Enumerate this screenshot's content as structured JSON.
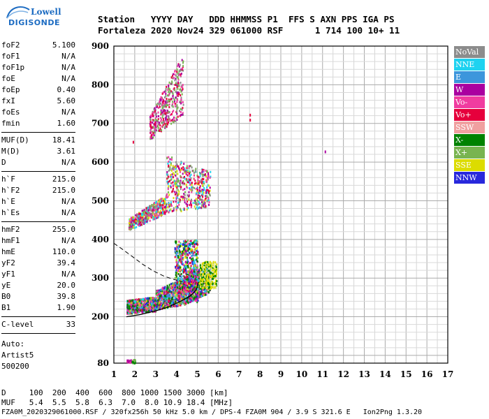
{
  "logo": {
    "line1": "Lowell",
    "line2": "DIGISONDE"
  },
  "header": {
    "labels": "Station   YYYY DAY   DDD HHMMSS P1  FFS S AXN PPS IGA PS",
    "values": "Fortaleza 2020 Nov24 329 061000 RSF      1 714 100 10+ 11"
  },
  "params": {
    "group1": [
      {
        "k": "foF2",
        "v": "5.100"
      },
      {
        "k": "foF1",
        "v": "N/A"
      },
      {
        "k": "foF1p",
        "v": "N/A"
      },
      {
        "k": "foE",
        "v": "N/A"
      },
      {
        "k": "foEp",
        "v": "0.40"
      },
      {
        "k": "fxI",
        "v": "5.60"
      },
      {
        "k": "foEs",
        "v": "N/A"
      },
      {
        "k": "fmin",
        "v": "1.60"
      }
    ],
    "group2": [
      {
        "k": "MUF(D)",
        "v": "18.41"
      },
      {
        "k": "M(D)",
        "v": "3.61"
      },
      {
        "k": "D",
        "v": "N/A"
      }
    ],
    "group3": [
      {
        "k": "h`F",
        "v": "215.0"
      },
      {
        "k": "h`F2",
        "v": "215.0"
      },
      {
        "k": "h`E",
        "v": "N/A"
      },
      {
        "k": "h`Es",
        "v": "N/A"
      }
    ],
    "group4": [
      {
        "k": "hmF2",
        "v": "255.0"
      },
      {
        "k": "hmF1",
        "v": "N/A"
      },
      {
        "k": "hmE",
        "v": "110.0"
      },
      {
        "k": "yF2",
        "v": "39.4"
      },
      {
        "k": "yF1",
        "v": "N/A"
      },
      {
        "k": "yE",
        "v": "20.0"
      },
      {
        "k": "B0",
        "v": "39.8"
      },
      {
        "k": "B1",
        "v": "1.90"
      }
    ],
    "clevel": {
      "k": "C-level",
      "v": "33"
    },
    "auto": [
      "Auto:",
      "Artist5",
      "500200"
    ]
  },
  "legend": [
    {
      "label": "NoVal",
      "color": "#8c8c8c"
    },
    {
      "label": "NNE",
      "color": "#1ed2f0"
    },
    {
      "label": "E",
      "color": "#3c96dc"
    },
    {
      "label": "W",
      "color": "#aa00a0"
    },
    {
      "label": "Vo-",
      "color": "#f03ca0"
    },
    {
      "label": "Vo+",
      "color": "#e6003c"
    },
    {
      "label": "SSW",
      "color": "#f0a0a0"
    },
    {
      "label": "X-",
      "color": "#008200"
    },
    {
      "label": "X+",
      "color": "#78b450"
    },
    {
      "label": "SSE",
      "color": "#dcdc00"
    },
    {
      "label": "NNW",
      "color": "#2828dc"
    }
  ],
  "bottom": {
    "dist": "D     100  200  400  600  800 1000 1500 3000 [km]",
    "muf": "MUF   5.4  5.5  5.8  6.3  7.0  8.0 10.9 18.4 [MHz]"
  },
  "footer": "FZA0M_2020329061000.RSF / 320fx256h 50 kHz 5.0 km / DPS-4 FZA0M 904 / 3.9 S 321.6 E   Ion2Png 1.3.20",
  "chart_data": {
    "type": "scatter",
    "xlim": [
      1,
      17
    ],
    "ylim": [
      80,
      900
    ],
    "xticks": [
      1,
      2,
      3,
      4,
      5,
      6,
      7,
      8,
      9,
      10,
      11,
      12,
      13,
      14,
      15,
      16,
      17
    ],
    "yticks": [
      80,
      200,
      300,
      400,
      500,
      600,
      700,
      800,
      900
    ],
    "grid": true,
    "clusters": [
      {
        "name": "F1",
        "x": [
          1.6,
          5.6
        ],
        "h": [
          205,
          330
        ]
      },
      {
        "name": "F2echo",
        "x": [
          1.7,
          5.6
        ],
        "h": [
          420,
          560
        ]
      },
      {
        "name": "F3echo",
        "x": [
          2.7,
          4.3
        ],
        "h": [
          640,
          880
        ]
      }
    ],
    "isolated_points": [
      {
        "x": 7.5,
        "y": 725,
        "color": "#e6003c"
      },
      {
        "x": 7.5,
        "y": 712,
        "color": "#e6003c"
      },
      {
        "x": 11.1,
        "y": 630,
        "color": "#aa00a0"
      },
      {
        "x": 1.9,
        "y": 655,
        "color": "#e6003c"
      },
      {
        "x": 3.9,
        "y": 380,
        "color": "#2828dc"
      }
    ],
    "profile_solid": {
      "x": [
        1.6,
        2.2,
        3.0,
        3.6,
        4.2,
        4.7,
        4.95,
        5.05
      ],
      "y": [
        200,
        205,
        215,
        225,
        240,
        255,
        270,
        290
      ]
    },
    "profile_dashed": {
      "x": [
        1.0,
        1.4,
        1.9,
        2.4,
        2.9,
        3.4,
        3.9,
        4.3
      ],
      "y": [
        390,
        375,
        355,
        335,
        318,
        305,
        296,
        290
      ]
    }
  }
}
